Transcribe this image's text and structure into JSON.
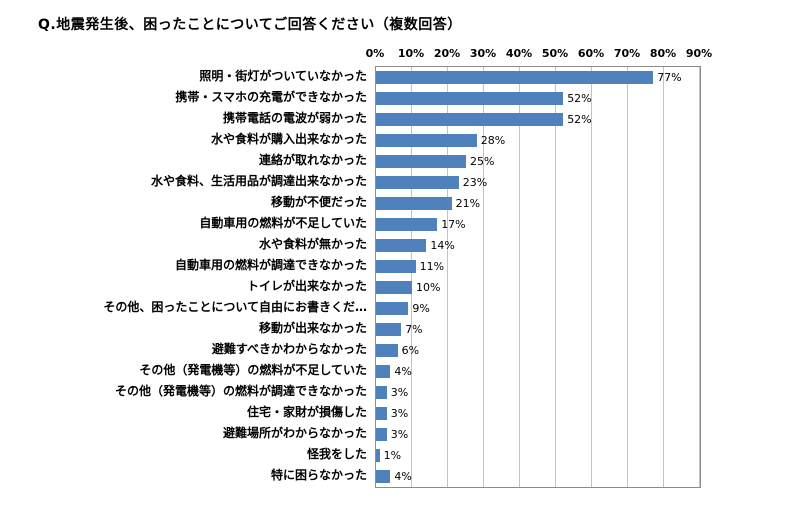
{
  "title": "Q.地震発生後、困ったことについてご回答ください（複数回答）",
  "chart_data": {
    "type": "bar",
    "orientation": "horizontal",
    "title": "Q.地震発生後、困ったことについてご回答ください（複数回答）",
    "categories": [
      "照明・街灯がついていなかった",
      "携帯・スマホの充電ができなかった",
      "携帯電話の電波が弱かった",
      "水や食料が購入出来なかった",
      "連絡が取れなかった",
      "水や食料、生活用品が調達出来なかった",
      "移動が不便だった",
      "自動車用の燃料が不足していた",
      "水や食料が無かった",
      "自動車用の燃料が調達できなかった",
      "トイレが出来なかった",
      "その他、困ったことについて自由にお書きくだ…",
      "移動が出来なかった",
      "避難すべきかわからなかった",
      "その他（発電機等）の燃料が不足していた",
      "その他（発電機等）の燃料が調達できなかった",
      "住宅・家財が損傷した",
      "避難場所がわからなかった",
      "怪我をした",
      "特に困らなかった"
    ],
    "values": [
      77,
      52,
      52,
      28,
      25,
      23,
      21,
      17,
      14,
      11,
      10,
      9,
      7,
      6,
      4,
      3,
      3,
      3,
      1,
      4
    ],
    "value_labels": [
      "77%",
      "52%",
      "52%",
      "28%",
      "25%",
      "23%",
      "21%",
      "17%",
      "14%",
      "11%",
      "10%",
      "9%",
      "7%",
      "6%",
      "4%",
      "3%",
      "3%",
      "3%",
      "1%",
      "4%"
    ],
    "x_ticks": [
      "0%",
      "10%",
      "20%",
      "30%",
      "40%",
      "50%",
      "60%",
      "70%",
      "80%",
      "90%"
    ],
    "xlim": [
      0,
      90
    ],
    "grid": true,
    "legend": "none",
    "bar_color": "#4f81bd",
    "gridline_color": "#c3c3c3",
    "border_color": "#8c8c8c"
  }
}
